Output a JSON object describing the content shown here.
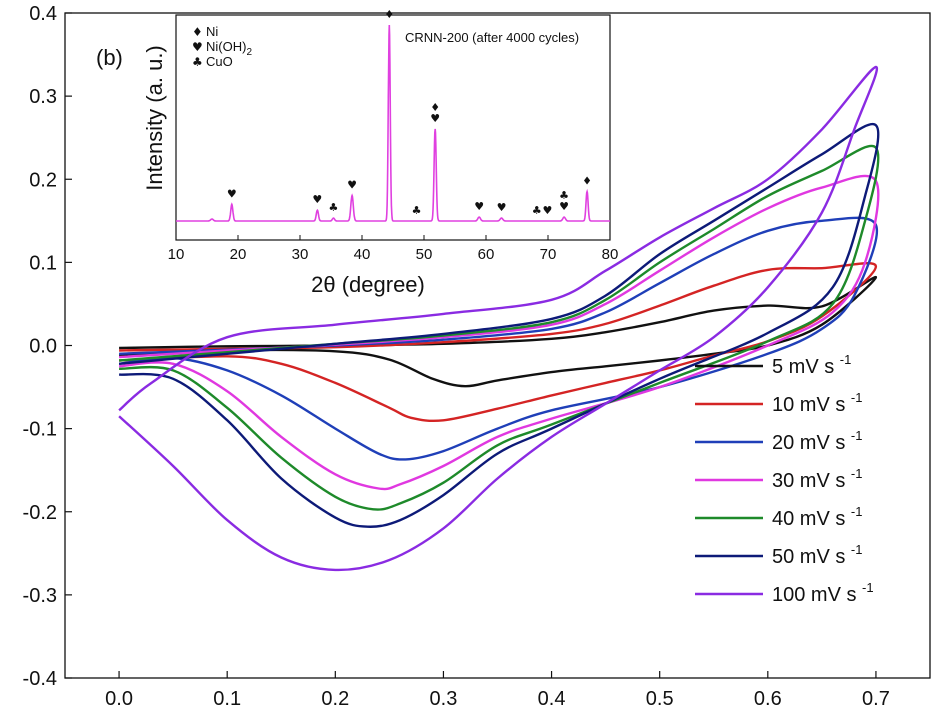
{
  "chart_data": [
    {
      "type": "line",
      "title": "",
      "xlabel": "",
      "ylabel": "",
      "xlim": [
        -0.05,
        0.75
      ],
      "ylim": [
        -0.4,
        0.4
      ],
      "x_ticks": [
        "0.0",
        "0.1",
        "0.2",
        "0.3",
        "0.4",
        "0.5",
        "0.6",
        "0.7"
      ],
      "y_ticks": [
        "-0.4",
        "-0.3",
        "-0.2",
        "-0.1",
        "0.0",
        "0.1",
        "0.2",
        "0.3",
        "0.4"
      ],
      "grid": false,
      "legend_position": "right",
      "series": [
        {
          "name": "5 mV s",
          "exponent": "-1",
          "color": "#111111",
          "anodic": [
            [
              0,
              -0.003
            ],
            [
              0.1,
              -0.001
            ],
            [
              0.2,
              0.0
            ],
            [
              0.3,
              0.002
            ],
            [
              0.4,
              0.008
            ],
            [
              0.45,
              0.016
            ],
            [
              0.5,
              0.028
            ],
            [
              0.55,
              0.042
            ],
            [
              0.6,
              0.048
            ],
            [
              0.65,
              0.047
            ],
            [
              0.7,
              0.082
            ]
          ],
          "cathodic": [
            [
              0.7,
              0.078
            ],
            [
              0.65,
              0.025
            ],
            [
              0.6,
              0.0
            ],
            [
              0.55,
              -0.01
            ],
            [
              0.5,
              -0.018
            ],
            [
              0.45,
              -0.025
            ],
            [
              0.4,
              -0.032
            ],
            [
              0.35,
              -0.042
            ],
            [
              0.32,
              -0.049
            ],
            [
              0.29,
              -0.04
            ],
            [
              0.25,
              -0.017
            ],
            [
              0.2,
              -0.007
            ],
            [
              0.1,
              -0.006
            ],
            [
              0,
              -0.012
            ]
          ]
        },
        {
          "name": "10 mV s",
          "exponent": "-1",
          "color": "#d42424",
          "anodic": [
            [
              0,
              -0.006
            ],
            [
              0.1,
              -0.004
            ],
            [
              0.2,
              -0.002
            ],
            [
              0.3,
              0.004
            ],
            [
              0.4,
              0.014
            ],
            [
              0.45,
              0.026
            ],
            [
              0.5,
              0.048
            ],
            [
              0.55,
              0.072
            ],
            [
              0.6,
              0.091
            ],
            [
              0.65,
              0.093
            ],
            [
              0.7,
              0.095
            ]
          ],
          "cathodic": [
            [
              0.7,
              0.09
            ],
            [
              0.65,
              0.035
            ],
            [
              0.6,
              0.005
            ],
            [
              0.55,
              -0.012
            ],
            [
              0.5,
              -0.03
            ],
            [
              0.45,
              -0.045
            ],
            [
              0.4,
              -0.06
            ],
            [
              0.35,
              -0.076
            ],
            [
              0.3,
              -0.09
            ],
            [
              0.27,
              -0.087
            ],
            [
              0.25,
              -0.075
            ],
            [
              0.2,
              -0.045
            ],
            [
              0.15,
              -0.022
            ],
            [
              0.1,
              -0.013
            ],
            [
              0,
              -0.018
            ]
          ]
        },
        {
          "name": "20 mV s",
          "exponent": "-1",
          "color": "#1f3fb8",
          "anodic": [
            [
              0,
              -0.01
            ],
            [
              0.1,
              -0.005
            ],
            [
              0.2,
              0.0
            ],
            [
              0.3,
              0.007
            ],
            [
              0.4,
              0.02
            ],
            [
              0.45,
              0.04
            ],
            [
              0.5,
              0.075
            ],
            [
              0.55,
              0.11
            ],
            [
              0.6,
              0.138
            ],
            [
              0.65,
              0.15
            ],
            [
              0.7,
              0.145
            ]
          ],
          "cathodic": [
            [
              0.7,
              0.145
            ],
            [
              0.68,
              0.06
            ],
            [
              0.65,
              0.02
            ],
            [
              0.6,
              -0.01
            ],
            [
              0.5,
              -0.05
            ],
            [
              0.4,
              -0.078
            ],
            [
              0.35,
              -0.1
            ],
            [
              0.3,
              -0.127
            ],
            [
              0.265,
              -0.137
            ],
            [
              0.24,
              -0.13
            ],
            [
              0.2,
              -0.1
            ],
            [
              0.15,
              -0.06
            ],
            [
              0.1,
              -0.03
            ],
            [
              0.05,
              -0.015
            ],
            [
              0,
              -0.022
            ]
          ]
        },
        {
          "name": "30 mV s",
          "exponent": "-1",
          "color": "#e038e0",
          "anodic": [
            [
              0,
              -0.014
            ],
            [
              0.1,
              -0.006
            ],
            [
              0.2,
              0.001
            ],
            [
              0.3,
              0.01
            ],
            [
              0.4,
              0.025
            ],
            [
              0.45,
              0.05
            ],
            [
              0.5,
              0.09
            ],
            [
              0.55,
              0.13
            ],
            [
              0.6,
              0.165
            ],
            [
              0.65,
              0.19
            ],
            [
              0.7,
              0.198
            ]
          ],
          "cathodic": [
            [
              0.7,
              0.198
            ],
            [
              0.69,
              0.1
            ],
            [
              0.66,
              0.04
            ],
            [
              0.6,
              0.0
            ],
            [
              0.5,
              -0.05
            ],
            [
              0.4,
              -0.088
            ],
            [
              0.35,
              -0.11
            ],
            [
              0.3,
              -0.145
            ],
            [
              0.26,
              -0.167
            ],
            [
              0.24,
              -0.172
            ],
            [
              0.2,
              -0.155
            ],
            [
              0.15,
              -0.11
            ],
            [
              0.1,
              -0.055
            ],
            [
              0.05,
              -0.022
            ],
            [
              0,
              -0.025
            ]
          ]
        },
        {
          "name": "40 mV s",
          "exponent": "-1",
          "color": "#1e8a2a",
          "anodic": [
            [
              0,
              -0.018
            ],
            [
              0.1,
              -0.008
            ],
            [
              0.2,
              0.002
            ],
            [
              0.3,
              0.012
            ],
            [
              0.4,
              0.028
            ],
            [
              0.45,
              0.055
            ],
            [
              0.5,
              0.1
            ],
            [
              0.55,
              0.14
            ],
            [
              0.6,
              0.18
            ],
            [
              0.65,
              0.21
            ],
            [
              0.7,
              0.238
            ]
          ],
          "cathodic": [
            [
              0.7,
              0.238
            ],
            [
              0.69,
              0.15
            ],
            [
              0.66,
              0.05
            ],
            [
              0.6,
              0.005
            ],
            [
              0.5,
              -0.045
            ],
            [
              0.4,
              -0.095
            ],
            [
              0.35,
              -0.12
            ],
            [
              0.3,
              -0.165
            ],
            [
              0.26,
              -0.19
            ],
            [
              0.235,
              -0.197
            ],
            [
              0.2,
              -0.182
            ],
            [
              0.15,
              -0.135
            ],
            [
              0.1,
              -0.075
            ],
            [
              0.05,
              -0.03
            ],
            [
              0,
              -0.028
            ]
          ]
        },
        {
          "name": "50 mV s",
          "exponent": "-1",
          "color": "#0d1a78",
          "anodic": [
            [
              0,
              -0.022
            ],
            [
              0.1,
              -0.01
            ],
            [
              0.2,
              0.002
            ],
            [
              0.3,
              0.014
            ],
            [
              0.4,
              0.032
            ],
            [
              0.45,
              0.06
            ],
            [
              0.5,
              0.11
            ],
            [
              0.55,
              0.15
            ],
            [
              0.6,
              0.19
            ],
            [
              0.65,
              0.23
            ],
            [
              0.7,
              0.265
            ]
          ],
          "cathodic": [
            [
              0.7,
              0.265
            ],
            [
              0.69,
              0.18
            ],
            [
              0.66,
              0.07
            ],
            [
              0.6,
              0.015
            ],
            [
              0.5,
              -0.04
            ],
            [
              0.4,
              -0.1
            ],
            [
              0.35,
              -0.13
            ],
            [
              0.3,
              -0.18
            ],
            [
              0.26,
              -0.21
            ],
            [
              0.23,
              -0.218
            ],
            [
              0.2,
              -0.207
            ],
            [
              0.15,
              -0.16
            ],
            [
              0.1,
              -0.09
            ],
            [
              0.05,
              -0.04
            ],
            [
              0,
              -0.035
            ]
          ]
        },
        {
          "name": "100 mV s",
          "exponent": "-1",
          "color": "#8a2be2",
          "anodic": [
            [
              0,
              -0.078
            ],
            [
              0.03,
              -0.045
            ],
            [
              0.1,
              0.01
            ],
            [
              0.2,
              0.025
            ],
            [
              0.3,
              0.038
            ],
            [
              0.4,
              0.055
            ],
            [
              0.45,
              0.09
            ],
            [
              0.5,
              0.13
            ],
            [
              0.55,
              0.165
            ],
            [
              0.6,
              0.2
            ],
            [
              0.65,
              0.26
            ],
            [
              0.7,
              0.335
            ]
          ],
          "cathodic": [
            [
              0.7,
              0.335
            ],
            [
              0.68,
              0.26
            ],
            [
              0.65,
              0.16
            ],
            [
              0.6,
              0.07
            ],
            [
              0.55,
              0.01
            ],
            [
              0.5,
              -0.03
            ],
            [
              0.45,
              -0.07
            ],
            [
              0.4,
              -0.11
            ],
            [
              0.35,
              -0.16
            ],
            [
              0.3,
              -0.22
            ],
            [
              0.25,
              -0.258
            ],
            [
              0.2,
              -0.27
            ],
            [
              0.15,
              -0.255
            ],
            [
              0.1,
              -0.21
            ],
            [
              0.05,
              -0.145
            ],
            [
              0,
              -0.085
            ]
          ]
        }
      ]
    },
    {
      "type": "line",
      "panel_label": "(b)",
      "title": "CRNN-200 (after 4000 cycles)",
      "xlabel": "2θ (degree)",
      "ylabel": "Intensity (a. u.)",
      "xlim": [
        10,
        80
      ],
      "x_ticks": [
        "10",
        "20",
        "30",
        "40",
        "50",
        "60",
        "70",
        "80"
      ],
      "legend": [
        {
          "symbol": "♦",
          "label": "Ni",
          "sub": ""
        },
        {
          "symbol": "♥",
          "label": "Ni(OH)",
          "sub": "2"
        },
        {
          "symbol": "♣",
          "label": "CuO",
          "sub": ""
        }
      ],
      "series": [
        {
          "name": "",
          "color": "#e040e0",
          "baseline": 0.0,
          "peaks": [
            {
              "x": 15.8,
              "h": 0.01,
              "w": 0.3
            },
            {
              "x": 19.0,
              "h": 0.085,
              "w": 0.25
            },
            {
              "x": 32.8,
              "h": 0.055,
              "w": 0.25
            },
            {
              "x": 35.4,
              "h": 0.015,
              "w": 0.25
            },
            {
              "x": 38.4,
              "h": 0.13,
              "w": 0.28
            },
            {
              "x": 44.4,
              "h": 1.0,
              "w": 0.22
            },
            {
              "x": 51.8,
              "h": 0.47,
              "w": 0.24
            },
            {
              "x": 58.9,
              "h": 0.02,
              "w": 0.3
            },
            {
              "x": 62.5,
              "h": 0.015,
              "w": 0.3
            },
            {
              "x": 72.6,
              "h": 0.02,
              "w": 0.3
            },
            {
              "x": 76.3,
              "h": 0.15,
              "w": 0.24
            }
          ]
        }
      ],
      "peak_markers": [
        {
          "x": 19.0,
          "symbols": [
            "♥"
          ]
        },
        {
          "x": 32.8,
          "symbols": [
            "♥"
          ]
        },
        {
          "x": 35.4,
          "symbols": [
            "♣"
          ]
        },
        {
          "x": 38.4,
          "symbols": [
            "♥"
          ]
        },
        {
          "x": 44.4,
          "symbols": [
            "♦"
          ]
        },
        {
          "x": 48.8,
          "symbols": [
            "♣"
          ]
        },
        {
          "x": 51.8,
          "symbols": [
            "♦",
            "♥"
          ]
        },
        {
          "x": 58.9,
          "symbols": [
            "♥"
          ]
        },
        {
          "x": 62.5,
          "symbols": [
            "♥"
          ]
        },
        {
          "x": 68.2,
          "symbols": [
            "♣"
          ]
        },
        {
          "x": 69.9,
          "symbols": [
            "♥"
          ]
        },
        {
          "x": 72.6,
          "symbols": [
            "♣",
            "♥"
          ]
        },
        {
          "x": 76.3,
          "symbols": [
            "♦"
          ]
        }
      ]
    }
  ]
}
